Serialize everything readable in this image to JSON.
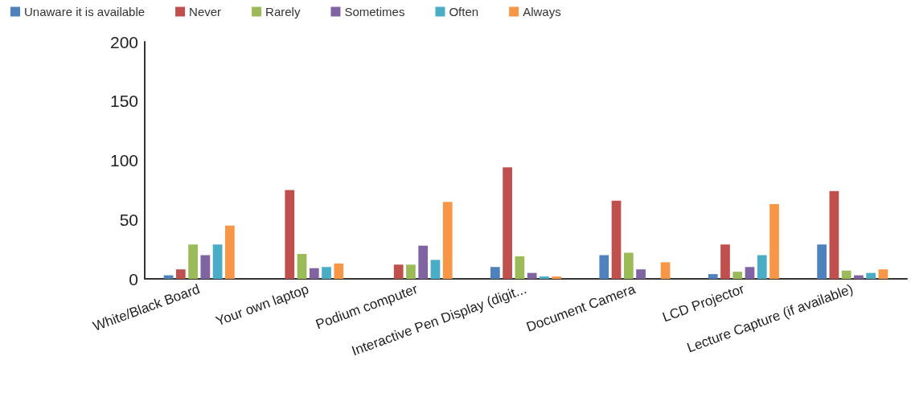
{
  "chart_data": {
    "type": "bar",
    "categories": [
      "White/Black Board",
      "Your own laptop",
      "Podium computer",
      "Interactive Pen Display (digit...",
      "Document Camera",
      "LCD Projector",
      "Lecture Capture (if available)"
    ],
    "series": [
      {
        "name": "Unaware it is available",
        "color": "#4f81bd",
        "values": [
          3,
          0,
          0,
          10,
          20,
          4,
          29
        ]
      },
      {
        "name": "Never",
        "color": "#c0504d",
        "values": [
          8,
          75,
          12,
          94,
          66,
          29,
          74
        ]
      },
      {
        "name": "Rarely",
        "color": "#9bbb59",
        "values": [
          29,
          21,
          12,
          19,
          22,
          6,
          7
        ]
      },
      {
        "name": "Sometimes",
        "color": "#8064a2",
        "values": [
          20,
          9,
          28,
          5,
          8,
          10,
          3
        ]
      },
      {
        "name": "Often",
        "color": "#4bacc6",
        "values": [
          29,
          10,
          16,
          2,
          0,
          20,
          5
        ]
      },
      {
        "name": "Always",
        "color": "#f79646",
        "values": [
          45,
          13,
          65,
          2,
          14,
          63,
          8
        ]
      }
    ],
    "ylim": [
      0,
      200
    ],
    "yticks": [
      0,
      50,
      100,
      150,
      200
    ],
    "grid": false,
    "legend": "top left"
  }
}
